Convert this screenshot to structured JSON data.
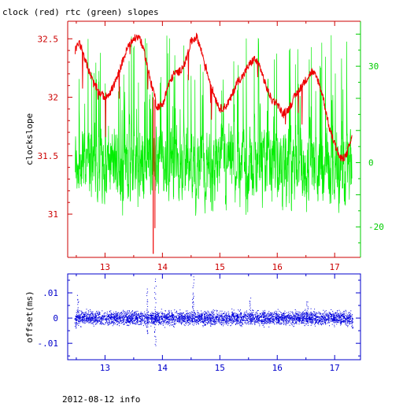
{
  "header": {
    "title": "clock (red) rtc (green) slopes"
  },
  "footer": {
    "text": "2012-08-12 info"
  },
  "colors": {
    "clock": "#ee0000",
    "rtc": "#00ee00",
    "offset": "#0000dd",
    "red_axis": "#cc0000",
    "green_axis": "#00cc00",
    "blue_axis": "#0000cc"
  },
  "chart_data": [
    {
      "type": "line",
      "title": "clock (red) rtc (green) slopes",
      "xlabel": "",
      "ylabel": "clockslope",
      "xlim": [
        12.35,
        17.45
      ],
      "ylim": [
        30.63,
        32.65
      ],
      "x_ticks": [
        13,
        14,
        15,
        16,
        17
      ],
      "y_ticks": [
        31,
        31.5,
        32,
        32.5
      ],
      "y2lim": [
        -29.5,
        44
      ],
      "y2_ticks": [
        -20,
        0,
        30
      ],
      "grid": false,
      "series": [
        {
          "name": "clock",
          "axis": "left",
          "x": [
            12.48,
            12.55,
            12.62,
            12.7,
            12.8,
            12.9,
            13.0,
            13.1,
            13.2,
            13.3,
            13.4,
            13.5,
            13.6,
            13.7,
            13.8,
            13.85,
            13.9,
            14.0,
            14.1,
            14.2,
            14.3,
            14.4,
            14.5,
            14.6,
            14.7,
            14.8,
            14.9,
            15.0,
            15.1,
            15.2,
            15.3,
            15.4,
            15.5,
            15.6,
            15.7,
            15.8,
            15.9,
            16.0,
            16.1,
            16.2,
            16.3,
            16.4,
            16.5,
            16.6,
            16.7,
            16.8,
            16.9,
            17.0,
            17.1,
            17.2,
            17.3
          ],
          "values": [
            32.4,
            32.47,
            32.38,
            32.25,
            32.12,
            32.04,
            32.0,
            32.05,
            32.15,
            32.3,
            32.43,
            32.5,
            32.52,
            32.35,
            32.12,
            32.05,
            31.92,
            31.93,
            32.1,
            32.2,
            32.22,
            32.3,
            32.48,
            32.52,
            32.36,
            32.18,
            32.02,
            31.9,
            31.92,
            32.0,
            32.13,
            32.18,
            32.27,
            32.33,
            32.26,
            32.1,
            31.98,
            31.95,
            31.85,
            31.9,
            32.0,
            32.08,
            32.15,
            32.22,
            32.16,
            32.0,
            31.75,
            31.6,
            31.47,
            31.5,
            31.65
          ]
        },
        {
          "name": "rtc",
          "axis": "right",
          "x": [
            12.48,
            17.3
          ],
          "values": [
            -24,
            40
          ]
        }
      ]
    },
    {
      "type": "scatter",
      "title": "",
      "xlabel": "",
      "ylabel": "offset(ms)",
      "xlim": [
        12.35,
        17.45
      ],
      "ylim": [
        -0.0165,
        0.0175
      ],
      "x_ticks": [
        13,
        14,
        15,
        16,
        17
      ],
      "y_ticks": [
        -0.01,
        0,
        0.01
      ],
      "grid": false,
      "series": [
        {
          "name": "offset",
          "x": [
            12.48,
            13.73,
            13.87,
            14.53,
            15.52,
            16.52,
            17.3
          ],
          "values": [
            -0.0045,
            -0.007,
            0.0165,
            0.018,
            0.008,
            0.007,
            -0.004
          ]
        }
      ]
    }
  ]
}
